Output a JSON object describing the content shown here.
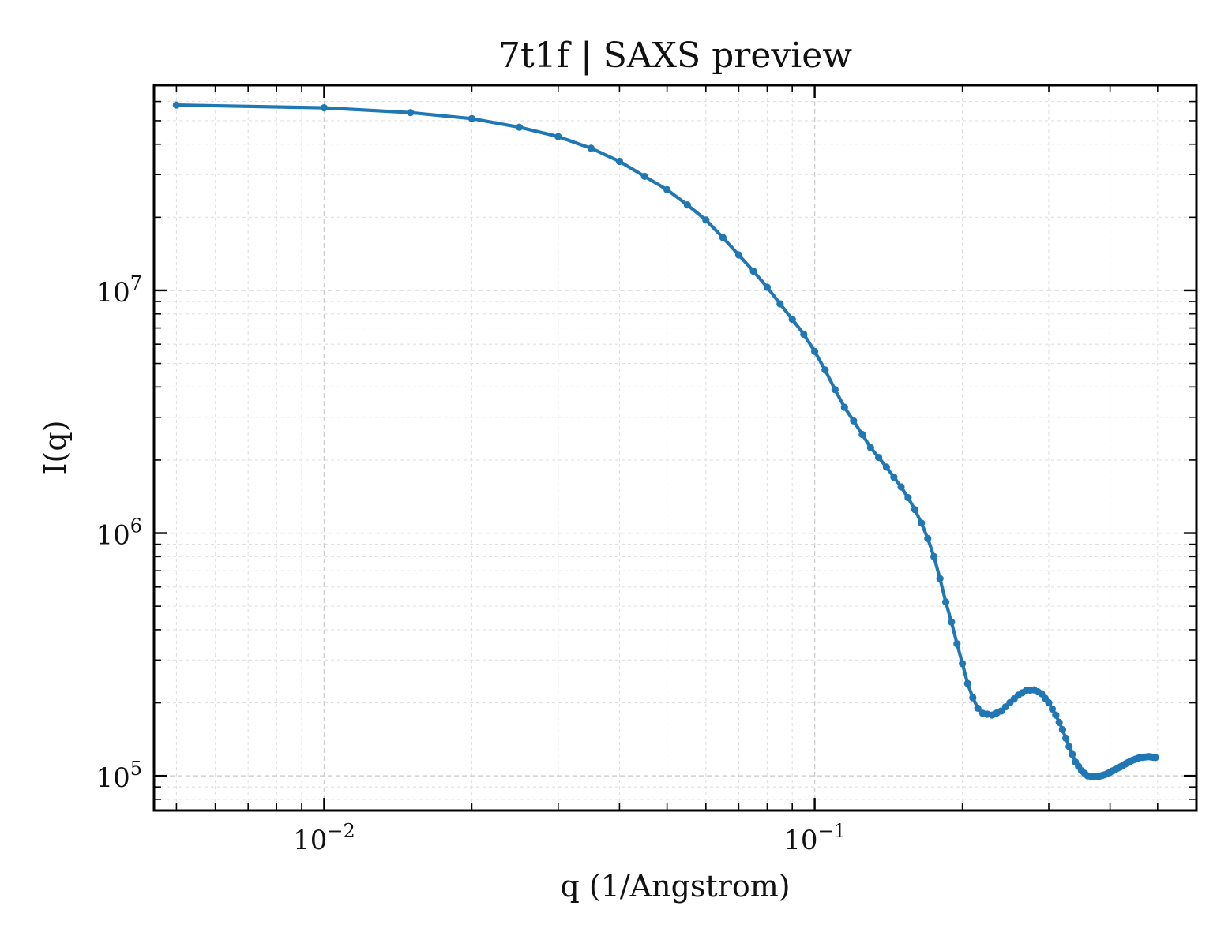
{
  "chart_data": {
    "type": "line",
    "title": "7t1f | SAXS preview",
    "xlabel": "q (1/Angstrom)",
    "ylabel": "I(q)",
    "xscale": "log",
    "yscale": "log",
    "xlim": [
      0.0045,
      0.6
    ],
    "ylim": [
      72000,
      70000000
    ],
    "x_ticks": [
      {
        "value": 0.01,
        "base": "10",
        "exponent": "−2"
      },
      {
        "value": 0.1,
        "base": "10",
        "exponent": "−1"
      }
    ],
    "y_ticks": [
      {
        "value": 100000,
        "base": "10",
        "exponent": "5"
      },
      {
        "value": 1000000,
        "base": "10",
        "exponent": "6"
      },
      {
        "value": 10000000,
        "base": "10",
        "exponent": "7"
      }
    ],
    "grid": true,
    "line_color": "#1f77b4",
    "series": [
      {
        "anchors": [
          [
            0.005,
            58000000
          ],
          [
            0.01,
            56500000
          ],
          [
            0.015,
            54000000
          ],
          [
            0.02,
            51000000
          ],
          [
            0.025,
            47000000
          ],
          [
            0.03,
            43000000
          ],
          [
            0.035,
            38500000
          ],
          [
            0.04,
            34000000
          ],
          [
            0.045,
            29500000
          ],
          [
            0.05,
            26000000
          ],
          [
            0.055,
            22500000
          ],
          [
            0.06,
            19500000
          ],
          [
            0.065,
            16500000
          ],
          [
            0.07,
            14000000
          ],
          [
            0.075,
            12000000
          ],
          [
            0.08,
            10300000
          ],
          [
            0.085,
            8800000
          ],
          [
            0.09,
            7600000
          ],
          [
            0.095,
            6600000
          ],
          [
            0.1,
            5600000
          ],
          [
            0.105,
            4700000
          ],
          [
            0.11,
            3900000
          ],
          [
            0.115,
            3300000
          ],
          [
            0.12,
            2900000
          ],
          [
            0.125,
            2550000
          ],
          [
            0.13,
            2250000
          ],
          [
            0.135,
            2050000
          ],
          [
            0.14,
            1870000
          ],
          [
            0.145,
            1700000
          ],
          [
            0.15,
            1550000
          ],
          [
            0.155,
            1400000
          ],
          [
            0.16,
            1250000
          ],
          [
            0.165,
            1100000
          ],
          [
            0.17,
            950000
          ],
          [
            0.175,
            800000
          ],
          [
            0.18,
            650000
          ],
          [
            0.185,
            520000
          ],
          [
            0.19,
            430000
          ],
          [
            0.195,
            350000
          ],
          [
            0.2,
            290000
          ],
          [
            0.205,
            240000
          ],
          [
            0.21,
            210000
          ],
          [
            0.215,
            190000
          ],
          [
            0.22,
            181000
          ],
          [
            0.23,
            178000
          ],
          [
            0.24,
            185000
          ],
          [
            0.25,
            200000
          ],
          [
            0.26,
            215000
          ],
          [
            0.27,
            225000
          ],
          [
            0.28,
            226000
          ],
          [
            0.29,
            218000
          ],
          [
            0.3,
            200000
          ],
          [
            0.31,
            178000
          ],
          [
            0.32,
            155000
          ],
          [
            0.33,
            132000
          ],
          [
            0.34,
            114000
          ],
          [
            0.35,
            105000
          ],
          [
            0.36,
            100000
          ],
          [
            0.37,
            99000
          ],
          [
            0.38,
            99500
          ],
          [
            0.39,
            101000
          ],
          [
            0.4,
            103500
          ],
          [
            0.42,
            109000
          ],
          [
            0.44,
            115000
          ],
          [
            0.46,
            119000
          ],
          [
            0.48,
            120000
          ],
          [
            0.495,
            119000
          ]
        ]
      }
    ]
  }
}
